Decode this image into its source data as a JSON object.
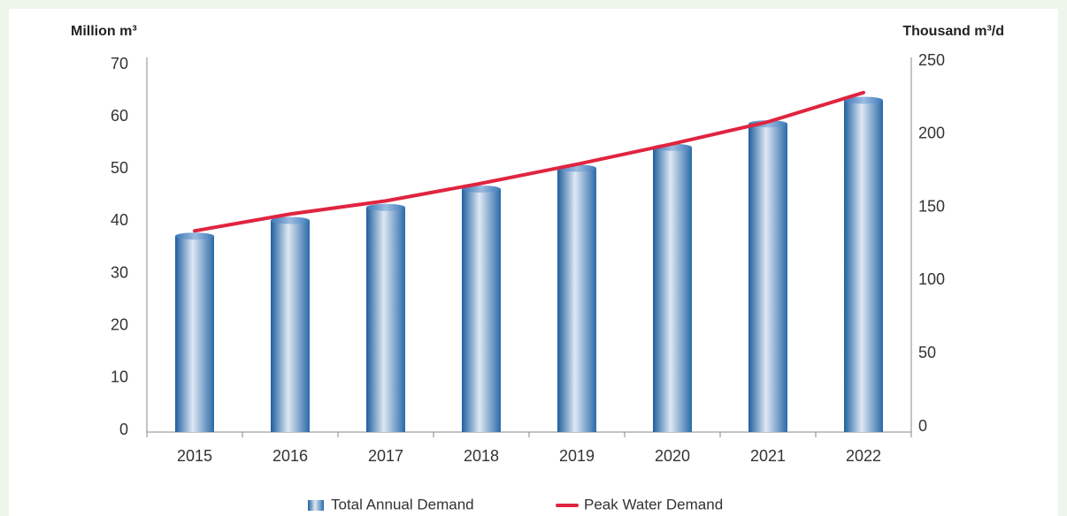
{
  "chart_data": {
    "type": "bar_line",
    "y_label": "Million m³",
    "y2_label": "Thousand m³/d",
    "categories": [
      "2015",
      "2016",
      "2017",
      "2018",
      "2019",
      "2020",
      "2021",
      "2022"
    ],
    "series": [
      {
        "name": "Total Annual Demand",
        "type": "bar",
        "color": "#3a78b8",
        "axis": "y",
        "values": [
          37.5,
          40.5,
          43,
          46.5,
          50.5,
          54.5,
          59,
          63.5
        ]
      },
      {
        "name": "Peak Water Demand",
        "type": "line",
        "color": "#e0243f",
        "axis": "y2",
        "values": [
          137.5,
          149,
          158,
          170,
          183,
          197,
          212,
          232
        ]
      }
    ],
    "ylim": [
      0,
      70
    ],
    "yticks": [
      0,
      10,
      20,
      30,
      40,
      50,
      60,
      70
    ],
    "y2lim": [
      0,
      250
    ],
    "y2ticks": [
      0,
      50,
      100,
      150,
      200,
      250
    ],
    "legend": "bottom"
  }
}
